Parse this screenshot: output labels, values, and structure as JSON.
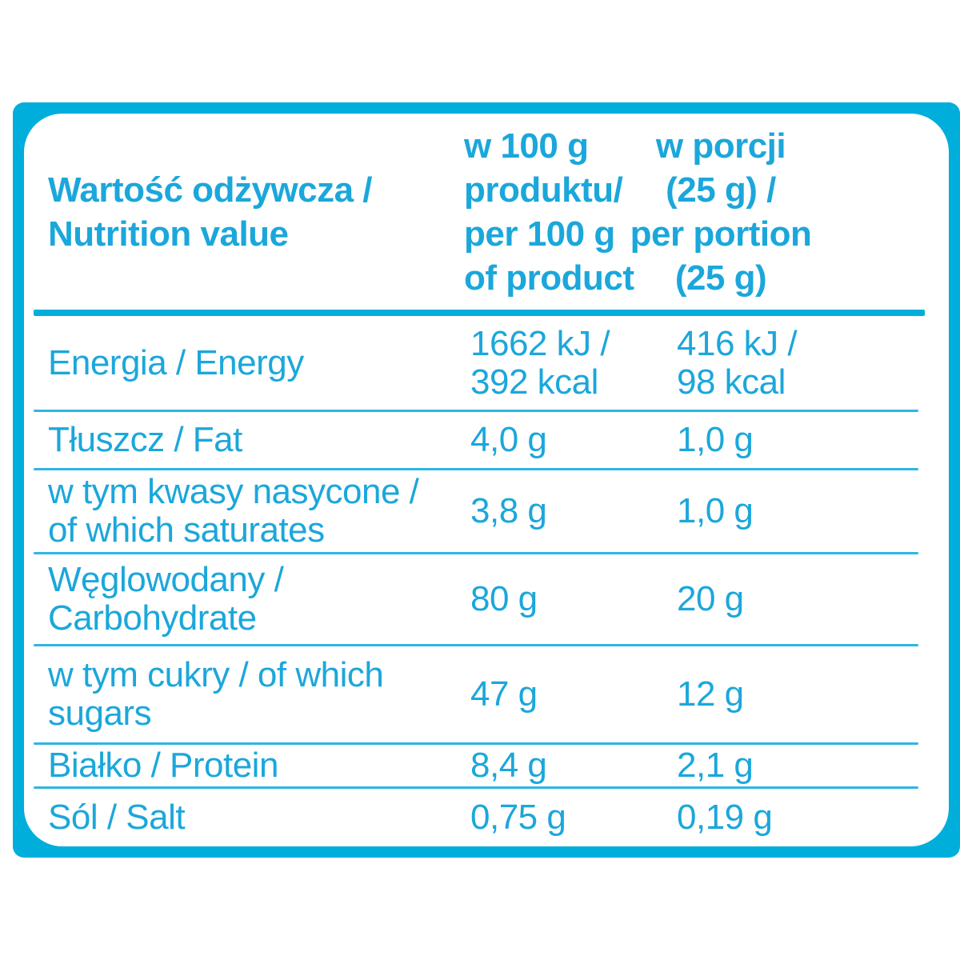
{
  "colors": {
    "border_cyan": "#00AEDB",
    "text_cyan": "#1BA7DB",
    "divider_cyan": "#2FB6E2",
    "background": "#ffffff"
  },
  "table": {
    "header": {
      "nutrition": [
        "Wartość odżywcza /",
        "Nutrition value"
      ],
      "per100g": [
        "w 100 g",
        "produktu/",
        "per 100 g",
        "of product"
      ],
      "portion": [
        "w porcji",
        "(25 g) /",
        "per portion",
        "(25 g)"
      ]
    },
    "rows": [
      {
        "label": [
          "Energia / Energy"
        ],
        "per100": [
          "1662 kJ /",
          "392 kcal"
        ],
        "portion": [
          "416 kJ /",
          "98 kcal"
        ]
      },
      {
        "label": [
          "Tłuszcz / Fat"
        ],
        "per100": [
          "4,0 g"
        ],
        "portion": [
          "1,0 g"
        ]
      },
      {
        "label": [
          "w tym kwasy nasycone /",
          "of which saturates"
        ],
        "per100": [
          "3,8 g"
        ],
        "portion": [
          "1,0 g"
        ]
      },
      {
        "label": [
          "Węglowodany /",
          "Carbohydrate"
        ],
        "per100": [
          "80 g"
        ],
        "portion": [
          "20 g"
        ]
      },
      {
        "label": [
          "w tym cukry / of which",
          "sugars"
        ],
        "per100": [
          "47 g"
        ],
        "portion": [
          "12 g"
        ]
      },
      {
        "label": [
          "Białko / Protein"
        ],
        "per100": [
          "8,4 g"
        ],
        "portion": [
          "2,1 g"
        ]
      },
      {
        "label": [
          "Sól / Salt"
        ],
        "per100": [
          "0,75 g"
        ],
        "portion": [
          "0,19 g"
        ]
      }
    ]
  }
}
